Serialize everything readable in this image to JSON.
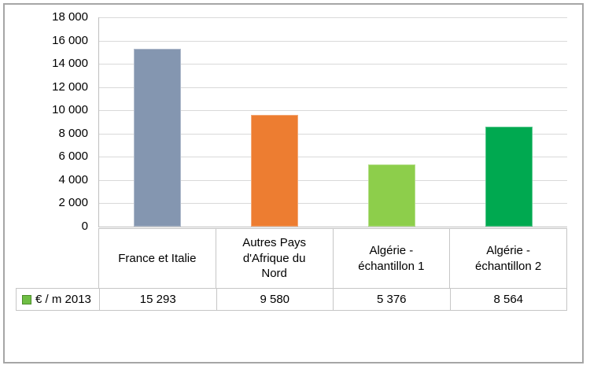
{
  "window": {
    "background": "#FFFFFF",
    "border_color": "#A6A6A6"
  },
  "chart_data": {
    "type": "bar",
    "title": "",
    "xlabel": "",
    "ylabel": "",
    "categories": [
      "France et Italie",
      "Autres Pays d'Afrique du Nord",
      "Algérie - échantillon 1",
      "Algérie - échantillon 2"
    ],
    "series": [
      {
        "name": "€ / m 2013",
        "values": [
          15293,
          9580,
          5376,
          8564
        ]
      }
    ],
    "value_labels": [
      "15 293",
      "9 580",
      "5 376",
      "8 564"
    ],
    "ylim": [
      0,
      18000
    ],
    "ytick_step": 2000,
    "ytick_values": [
      0,
      2000,
      4000,
      6000,
      8000,
      10000,
      12000,
      14000,
      16000,
      18000
    ],
    "ytick_labels": [
      "0",
      "2 000",
      "4 000",
      "6 000",
      "8 000",
      "10 000",
      "12 000",
      "14 000",
      "16 000",
      "18 000"
    ],
    "bar_colors": [
      "#8496B0",
      "#ED7D31",
      "#8DCE4B",
      "#00A950"
    ],
    "gridline_color": "#D9D9D9",
    "axis_line_color": "#BFBFBF",
    "table_border_color": "#C6C6C6",
    "grid": true,
    "legend_position": "data-table-left",
    "legend": {
      "label": "€ / m 2013",
      "swatch_fill": "#6FBE44",
      "swatch_border": "#4C8B2B"
    }
  }
}
